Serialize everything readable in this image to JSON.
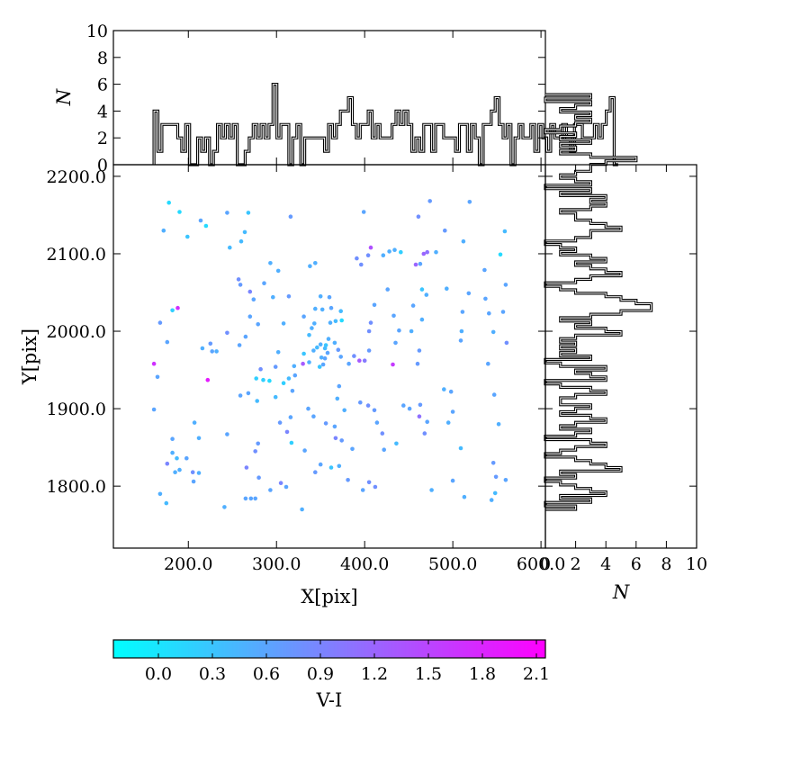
{
  "chart_data": [
    {
      "type": "scatter",
      "panel": "main",
      "xlabel": "X[pix]",
      "ylabel": "Y[pix]",
      "xlim": [
        115,
        605
      ],
      "ylim": [
        1720,
        2215
      ],
      "xticks": [
        200,
        300,
        400,
        500,
        600
      ],
      "xtick_labels": [
        "200.0",
        "300.0",
        "400.0",
        "500.0",
        "600.0"
      ],
      "yticks": [
        1800,
        1900,
        2000,
        2100,
        2200
      ],
      "ytick_labels": [
        "1800.0",
        "1900.0",
        "2000.0",
        "2100.0",
        "2200.0"
      ],
      "color_by": "V-I",
      "points": [
        [
          178,
          2166,
          0.1
        ],
        [
          190,
          2154,
          0.1
        ],
        [
          172,
          2130,
          0.5
        ],
        [
          199,
          2122,
          0.3
        ],
        [
          214,
          2143,
          0.6
        ],
        [
          220,
          2136,
          0.1
        ],
        [
          244,
          2153,
          0.6
        ],
        [
          247,
          2108,
          0.4
        ],
        [
          260,
          2116,
          0.4
        ],
        [
          264,
          2128,
          0.4
        ],
        [
          268,
          2153,
          0.3
        ],
        [
          316,
          2148,
          0.7
        ],
        [
          399,
          2154,
          0.6
        ],
        [
          461,
          2148,
          0.8
        ],
        [
          474,
          2168,
          0.7
        ],
        [
          519,
          2167,
          0.6
        ],
        [
          491,
          2130,
          0.7
        ],
        [
          512,
          2116,
          0.5
        ],
        [
          559,
          2129,
          0.4
        ],
        [
          554,
          2099,
          0.1
        ],
        [
          467,
          2100,
          1.2
        ],
        [
          471,
          2102,
          1.1
        ],
        [
          463,
          2087,
          0.6
        ],
        [
          481,
          2102,
          0.5
        ],
        [
          428,
          2103,
          0.5
        ],
        [
          421,
          2098,
          0.5
        ],
        [
          434,
          2105,
          0.5
        ],
        [
          441,
          2102,
          0.2
        ],
        [
          407,
          2108,
          1.4
        ],
        [
          404,
          2098,
          0.8
        ],
        [
          391,
          2094,
          0.8
        ],
        [
          396,
          2086,
          0.8
        ],
        [
          458,
          2086,
          1.2
        ],
        [
          536,
          2079,
          0.6
        ],
        [
          537,
          2042,
          0.6
        ],
        [
          560,
          2060,
          0.6
        ],
        [
          557,
          2025,
          0.6
        ],
        [
          518,
          2049,
          0.6
        ],
        [
          493,
          2055,
          0.5
        ],
        [
          470,
          2047,
          0.5
        ],
        [
          465,
          2054,
          0.3
        ],
        [
          455,
          2033,
          0.6
        ],
        [
          426,
          2054,
          0.6
        ],
        [
          411,
          2034,
          0.6
        ],
        [
          433,
          2020,
          0.6
        ],
        [
          407,
          2011,
          0.8
        ],
        [
          405,
          2000,
          0.8
        ],
        [
          439,
          2001,
          0.6
        ],
        [
          453,
          2000,
          0.5
        ],
        [
          465,
          2015,
          0.5
        ],
        [
          511,
          2025,
          0.6
        ],
        [
          510,
          2000,
          0.5
        ],
        [
          509,
          1988,
          0.6
        ],
        [
          541,
          2023,
          0.6
        ],
        [
          546,
          1999,
          0.5
        ],
        [
          561,
          1985,
          0.8
        ],
        [
          540,
          1958,
          0.6
        ],
        [
          462,
          1975,
          0.7
        ],
        [
          460,
          1958,
          0.7
        ],
        [
          435,
          1985,
          0.6
        ],
        [
          432,
          1957,
          1.6
        ],
        [
          405,
          1975,
          0.7
        ],
        [
          394,
          1962,
          1.3
        ],
        [
          400,
          1962,
          1.0
        ],
        [
          388,
          1968,
          0.8
        ],
        [
          382,
          1958,
          0.6
        ],
        [
          370,
          1976,
          0.7
        ],
        [
          373,
          1967,
          0.6
        ],
        [
          366,
          1985,
          0.5
        ],
        [
          359,
          1990,
          0.5
        ],
        [
          356,
          1982,
          0.3
        ],
        [
          355,
          1978,
          0.4
        ],
        [
          350,
          1983,
          0.5
        ],
        [
          346,
          1979,
          0.4
        ],
        [
          342,
          1975,
          0.5
        ],
        [
          351,
          1966,
          0.5
        ],
        [
          355,
          1965,
          0.6
        ],
        [
          358,
          1972,
          0.6
        ],
        [
          337,
          1960,
          0.5
        ],
        [
          349,
          1954,
          0.3
        ],
        [
          353,
          1957,
          0.6
        ],
        [
          331,
          1971,
          0.3
        ],
        [
          330,
          1958,
          1.3
        ],
        [
          320,
          1955,
          0.5
        ],
        [
          321,
          1943,
          0.6
        ],
        [
          314,
          1939,
          0.4
        ],
        [
          302,
          1973,
          0.5
        ],
        [
          299,
          1954,
          0.7
        ],
        [
          292,
          1936,
          0.1
        ],
        [
          285,
          1937,
          0.2
        ],
        [
          277,
          1939,
          0.2
        ],
        [
          282,
          1951,
          0.8
        ],
        [
          308,
          1933,
          0.2
        ],
        [
          318,
          1923,
          0.6
        ],
        [
          299,
          1915,
          0.4
        ],
        [
          268,
          1920,
          0.6
        ],
        [
          259,
          1917,
          0.6
        ],
        [
          278,
          1910,
          0.4
        ],
        [
          222,
          1937,
          1.9
        ],
        [
          161,
          1958,
          1.7
        ],
        [
          165,
          1941,
          0.6
        ],
        [
          161,
          1899,
          0.6
        ],
        [
          168,
          2011,
          0.7
        ],
        [
          176,
          1986,
          0.6
        ],
        [
          182,
          2027,
          0.2
        ],
        [
          188,
          2030,
          1.7
        ],
        [
          216,
          1978,
          0.5
        ],
        [
          225,
          1984,
          0.7
        ],
        [
          227,
          1974,
          0.6
        ],
        [
          232,
          1974,
          0.5
        ],
        [
          258,
          1982,
          0.6
        ],
        [
          265,
          1993,
          0.6
        ],
        [
          244,
          1998,
          0.8
        ],
        [
          270,
          2019,
          0.6
        ],
        [
          279,
          2009,
          0.6
        ],
        [
          274,
          2041,
          0.6
        ],
        [
          296,
          2044,
          0.5
        ],
        [
          308,
          2010,
          0.5
        ],
        [
          314,
          2045,
          0.7
        ],
        [
          286,
          2062,
          0.6
        ],
        [
          257,
          2067,
          0.8
        ],
        [
          259,
          2060,
          0.7
        ],
        [
          270,
          2051,
          0.9
        ],
        [
          293,
          2088,
          0.5
        ],
        [
          302,
          2078,
          0.5
        ],
        [
          338,
          2084,
          0.5
        ],
        [
          344,
          2088,
          0.5
        ],
        [
          350,
          2045,
          0.5
        ],
        [
          344,
          2029,
          0.5
        ],
        [
          360,
          2044,
          0.6
        ],
        [
          352,
          2028,
          0.5
        ],
        [
          362,
          2030,
          0.6
        ],
        [
          373,
          2026,
          0.4
        ],
        [
          374,
          2014,
          0.1
        ],
        [
          361,
          2011,
          0.5
        ],
        [
          367,
          2013,
          0.4
        ],
        [
          343,
          2010,
          0.5
        ],
        [
          340,
          2004,
          0.5
        ],
        [
          331,
          2019,
          0.6
        ],
        [
          337,
          1995,
          0.4
        ],
        [
          371,
          1929,
          0.6
        ],
        [
          369,
          1913,
          0.5
        ],
        [
          377,
          1898,
          0.5
        ],
        [
          342,
          1890,
          0.6
        ],
        [
          366,
          1877,
          0.6
        ],
        [
          356,
          1881,
          0.7
        ],
        [
          336,
          1900,
          0.6
        ],
        [
          316,
          1889,
          0.6
        ],
        [
          304,
          1882,
          0.7
        ],
        [
          312,
          1870,
          0.9
        ],
        [
          317,
          1856,
          0.2
        ],
        [
          332,
          1846,
          0.6
        ],
        [
          344,
          1818,
          0.7
        ],
        [
          350,
          1828,
          0.6
        ],
        [
          362,
          1824,
          0.3
        ],
        [
          367,
          1862,
          0.9
        ],
        [
          374,
          1859,
          0.7
        ],
        [
          371,
          1826,
          0.5
        ],
        [
          381,
          1808,
          0.7
        ],
        [
          386,
          1848,
          0.6
        ],
        [
          395,
          1908,
          0.7
        ],
        [
          404,
          1904,
          0.8
        ],
        [
          411,
          1898,
          0.7
        ],
        [
          414,
          1882,
          0.6
        ],
        [
          420,
          1868,
          0.8
        ],
        [
          422,
          1847,
          0.6
        ],
        [
          436,
          1855,
          0.4
        ],
        [
          444,
          1904,
          0.6
        ],
        [
          451,
          1900,
          0.6
        ],
        [
          463,
          1905,
          0.7
        ],
        [
          462,
          1890,
          1.1
        ],
        [
          471,
          1883,
          0.6
        ],
        [
          468,
          1868,
          0.8
        ],
        [
          490,
          1925,
          0.5
        ],
        [
          498,
          1922,
          0.6
        ],
        [
          500,
          1896,
          0.6
        ],
        [
          495,
          1882,
          0.5
        ],
        [
          509,
          1849,
          0.4
        ],
        [
          500,
          1807,
          0.6
        ],
        [
          476,
          1795,
          0.5
        ],
        [
          513,
          1786,
          0.5
        ],
        [
          546,
          1830,
          0.7
        ],
        [
          549,
          1812,
          0.7
        ],
        [
          560,
          1808,
          0.6
        ],
        [
          552,
          1880,
          0.5
        ],
        [
          547,
          1918,
          0.6
        ],
        [
          548,
          1791,
          0.4
        ],
        [
          544,
          1782,
          0.5
        ],
        [
          412,
          1799,
          0.8
        ],
        [
          405,
          1805,
          0.8
        ],
        [
          398,
          1795,
          0.6
        ],
        [
          329,
          1770,
          0.5
        ],
        [
          293,
          1795,
          0.6
        ],
        [
          276,
          1784,
          0.6
        ],
        [
          271,
          1784,
          0.6
        ],
        [
          265,
          1784,
          0.6
        ],
        [
          280,
          1811,
          0.7
        ],
        [
          276,
          1845,
          0.8
        ],
        [
          279,
          1855,
          0.7
        ],
        [
          266,
          1824,
          0.9
        ],
        [
          241,
          1773,
          0.5
        ],
        [
          212,
          1817,
          0.5
        ],
        [
          206,
          1806,
          0.6
        ],
        [
          205,
          1818,
          0.8
        ],
        [
          198,
          1836,
          0.6
        ],
        [
          190,
          1821,
          0.5
        ],
        [
          185,
          1818,
          0.5
        ],
        [
          182,
          1843,
          0.5
        ],
        [
          187,
          1836,
          0.4
        ],
        [
          182,
          1861,
          0.6
        ],
        [
          176,
          1829,
          0.9
        ],
        [
          207,
          1882,
          0.5
        ],
        [
          212,
          1862,
          0.5
        ],
        [
          244,
          1867,
          0.6
        ],
        [
          168,
          1790,
          0.5
        ],
        [
          175,
          1778,
          0.4
        ],
        [
          305,
          1804,
          0.9
        ],
        [
          311,
          1799,
          0.6
        ]
      ]
    },
    {
      "type": "histogram",
      "panel": "top",
      "orientation": "vertical",
      "ylabel": "N",
      "xlim": [
        115,
        605
      ],
      "ylim": [
        0,
        10
      ],
      "yticks": [
        0,
        2,
        4,
        6,
        8,
        10
      ],
      "bin_width": 4.5,
      "bin_start": 161,
      "counts": [
        4,
        1,
        3,
        3,
        3,
        3,
        2,
        1,
        3,
        0,
        0,
        2,
        1,
        2,
        0,
        1,
        3,
        2,
        3,
        2,
        3,
        0,
        0,
        1,
        2,
        3,
        2,
        3,
        2,
        3,
        6,
        2,
        3,
        3,
        0,
        2,
        3,
        0,
        2,
        2,
        2,
        2,
        2,
        1,
        3,
        2,
        3,
        4,
        4,
        5,
        3,
        2,
        3,
        3,
        4,
        2,
        3,
        2,
        2,
        2,
        3,
        4,
        3,
        4,
        3,
        1,
        2,
        1,
        3,
        3,
        1,
        3,
        3,
        2,
        2,
        2,
        1,
        3,
        3,
        1,
        3,
        2,
        0,
        3,
        3,
        4,
        5,
        3,
        2,
        3,
        0,
        2,
        3,
        2,
        2,
        3,
        1,
        3,
        2,
        1,
        3,
        2,
        2,
        3,
        2,
        1,
        3,
        3,
        2,
        2,
        2,
        3,
        2,
        3,
        4,
        5,
        0
      ]
    },
    {
      "type": "histogram",
      "panel": "right",
      "orientation": "horizontal",
      "xlabel": "N",
      "xlim": [
        0,
        10
      ],
      "ylim": [
        1720,
        2215
      ],
      "xticks": [
        0,
        2,
        4,
        6,
        8,
        10
      ],
      "bin_width": 4.5,
      "bin_start": 1770,
      "counts": [
        2,
        0,
        3,
        1,
        4,
        3,
        2,
        1,
        0,
        2,
        1,
        5,
        4,
        3,
        2,
        0,
        1,
        2,
        4,
        3,
        0,
        2,
        3,
        1,
        2,
        4,
        3,
        1,
        2,
        3,
        1,
        1,
        2,
        4,
        3,
        1,
        0,
        4,
        3,
        2,
        4,
        1,
        0,
        3,
        1,
        2,
        1,
        2,
        1,
        2,
        5,
        4,
        2,
        3,
        1,
        3,
        5,
        7,
        7,
        6,
        5,
        4,
        2,
        1,
        0,
        2,
        3,
        5,
        4,
        3,
        2,
        4,
        3,
        1,
        2,
        1,
        0,
        2,
        3,
        3,
        5,
        4,
        3,
        2,
        2,
        1,
        3,
        4,
        3,
        4,
        1,
        3,
        0,
        3,
        2,
        1,
        2,
        3,
        3,
        4,
        6,
        3,
        1,
        2,
        1,
        3,
        1,
        2,
        0,
        1,
        2,
        3,
        2,
        3,
        1,
        2,
        3,
        0,
        3
      ]
    }
  ],
  "colorbar": {
    "label": "V-I",
    "min": -0.25,
    "max": 2.15,
    "ticks": [
      0.0,
      0.3,
      0.6,
      0.9,
      1.2,
      1.5,
      1.8,
      2.1
    ],
    "tick_labels": [
      "0.0",
      "0.3",
      "0.6",
      "0.9",
      "1.2",
      "1.5",
      "1.8",
      "2.1"
    ],
    "colormap": "cool",
    "color_low": "#00ffff",
    "color_high": "#ff00ff"
  }
}
